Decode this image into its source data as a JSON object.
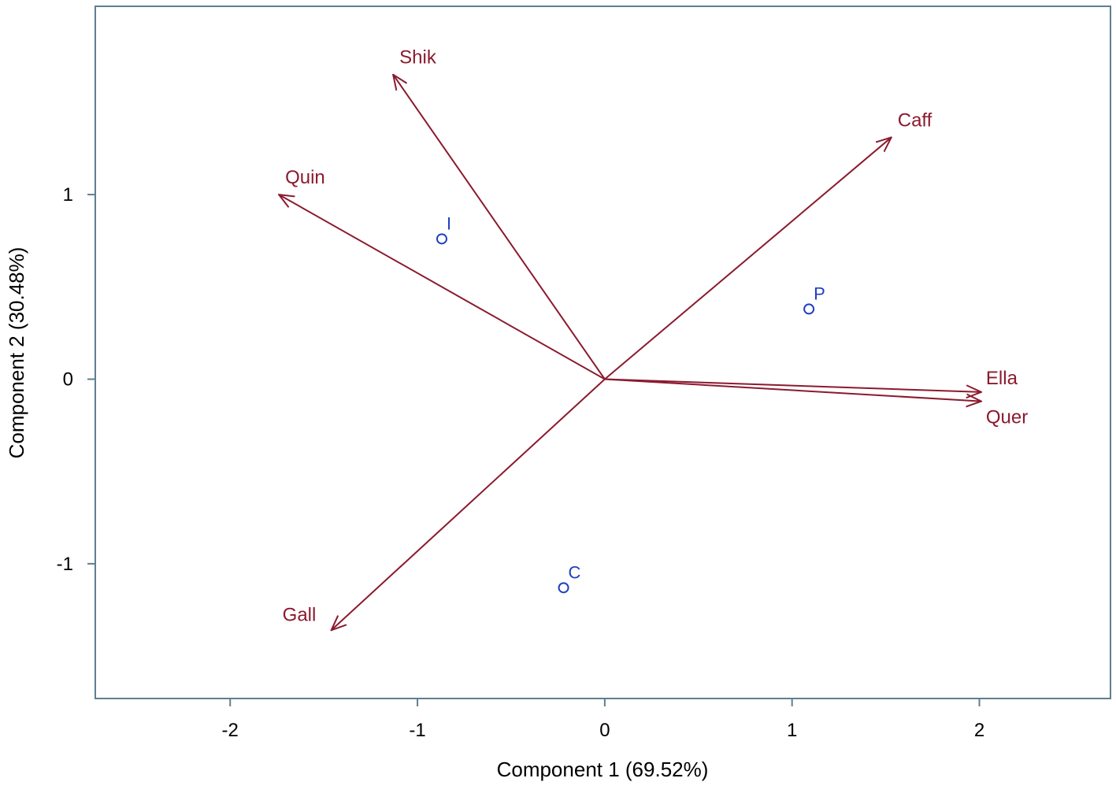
{
  "chart_data": {
    "type": "biplot",
    "xlabel": "Component 1 (69.52%)",
    "ylabel": "Component 2 (30.48%)",
    "xlim": [
      -2.72,
      2.7
    ],
    "ylim": [
      -1.73,
      2.02
    ],
    "x_ticks": [
      {
        "value": -2,
        "label": "-2"
      },
      {
        "value": -1,
        "label": "-1"
      },
      {
        "value": 0,
        "label": "0"
      },
      {
        "value": 1,
        "label": "1"
      },
      {
        "value": 2,
        "label": "2"
      }
    ],
    "y_ticks": [
      {
        "value": -1,
        "label": "-1"
      },
      {
        "value": 0,
        "label": "0"
      },
      {
        "value": 1,
        "label": "1"
      }
    ],
    "grid": false,
    "colors": {
      "frame": "#5f7f8f",
      "vectors": "#8b1a2e",
      "observations": "#1f3fbf",
      "text": "#000000"
    },
    "variables": [
      {
        "name": "Shik",
        "x": -1.13,
        "y": 1.65
      },
      {
        "name": "Caff",
        "x": 1.53,
        "y": 1.31
      },
      {
        "name": "Quin",
        "x": -1.74,
        "y": 1.0
      },
      {
        "name": "Ella",
        "x": 2.01,
        "y": -0.07
      },
      {
        "name": "Quer",
        "x": 2.01,
        "y": -0.12
      },
      {
        "name": "Gall",
        "x": -1.46,
        "y": -1.36
      }
    ],
    "observations": [
      {
        "name": "I",
        "x": -0.87,
        "y": 0.76
      },
      {
        "name": "P",
        "x": 1.09,
        "y": 0.38
      },
      {
        "name": "C",
        "x": -0.22,
        "y": -1.13
      }
    ]
  }
}
